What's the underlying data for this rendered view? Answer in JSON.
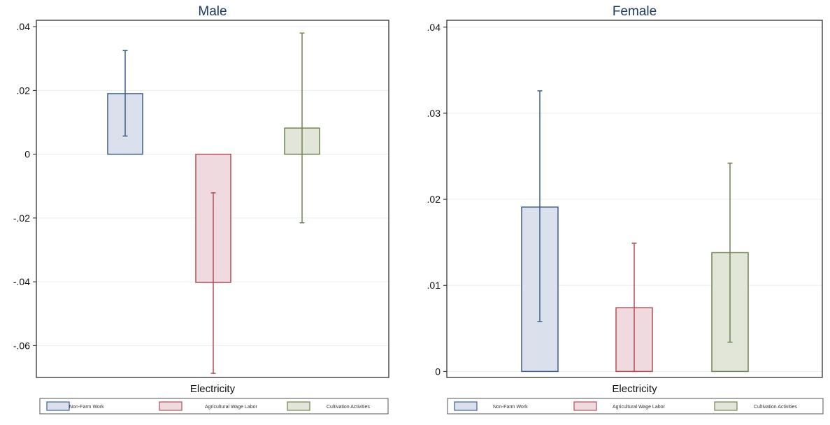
{
  "chart_data": [
    {
      "type": "bar",
      "title": "Male",
      "xlabel": "Electricity",
      "ylabel": "",
      "ylim": [
        -0.07,
        0.042
      ],
      "yticks": [
        0.04,
        0.02,
        0,
        -0.02,
        -0.04,
        -0.06
      ],
      "ytick_labels": [
        ".04",
        ".02",
        "0",
        "-.02",
        "-.04",
        "-.06"
      ],
      "grid": true,
      "legend_position": "bottom",
      "series": [
        {
          "name": "Non-Farm Work",
          "value": 0.019,
          "ci_low": 0.0057,
          "ci_high": 0.0325,
          "fill": "#dbe1ec",
          "stroke": "#3f5f8f"
        },
        {
          "name": "Agricultural Wage Labor",
          "value": -0.0402,
          "ci_low": -0.0687,
          "ci_high": -0.0121,
          "fill": "#efdbdf",
          "stroke": "#b14f57"
        },
        {
          "name": "Cultivation Activities",
          "value": 0.0082,
          "ci_low": -0.0215,
          "ci_high": 0.038,
          "fill": "#e2e6d8",
          "stroke": "#6f8450"
        }
      ]
    },
    {
      "type": "bar",
      "title": "Female",
      "xlabel": "Electricity",
      "ylabel": "",
      "ylim": [
        -0.0007,
        0.0408
      ],
      "yticks": [
        0.04,
        0.03,
        0.02,
        0.01,
        0
      ],
      "ytick_labels": [
        ".04",
        ".03",
        ".02",
        ".01",
        "0"
      ],
      "grid": true,
      "legend_position": "bottom",
      "series": [
        {
          "name": "Non-Farm Work",
          "value": 0.0191,
          "ci_low": 0.0058,
          "ci_high": 0.0326,
          "fill": "#dbe1ec",
          "stroke": "#3f5f8f"
        },
        {
          "name": "Agricultural Wage Labor",
          "value": 0.0074,
          "ci_low": 0.0,
          "ci_high": 0.0149,
          "fill": "#efdbdf",
          "stroke": "#b14f57"
        },
        {
          "name": "Cultivation Activities",
          "value": 0.0138,
          "ci_low": 0.0034,
          "ci_high": 0.0242,
          "fill": "#e2e6d8",
          "stroke": "#6f8450"
        }
      ]
    }
  ]
}
